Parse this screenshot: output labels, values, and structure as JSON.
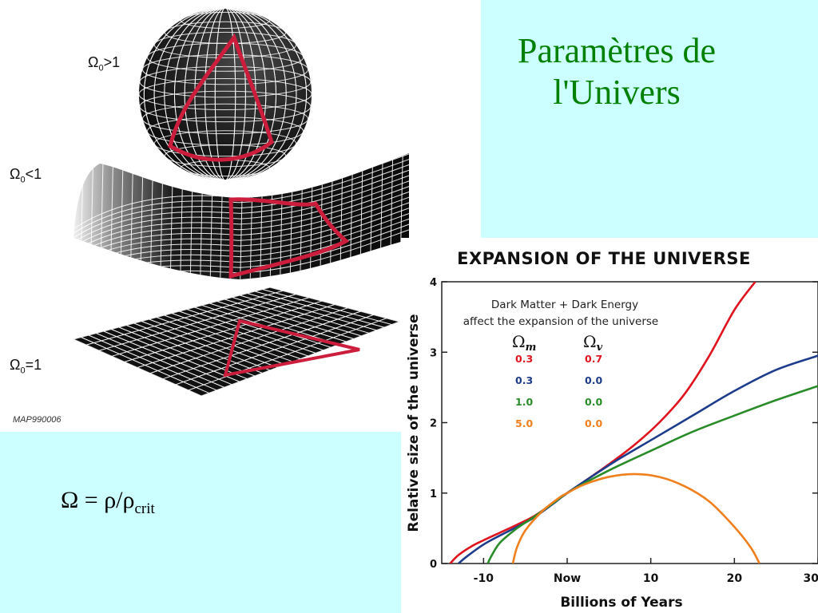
{
  "slide": {
    "title_line1": "Paramètres de",
    "title_line2": "l'Univers",
    "formula_main": "Ω = ρ/ρ",
    "formula_sub": "crit"
  },
  "geometry": {
    "closed_label": "Ω",
    "closed_sub": "0",
    "closed_rel": ">1",
    "open_label": "Ω",
    "open_sub": "0",
    "open_rel": "<1",
    "flat_label": "Ω",
    "flat_sub": "0",
    "flat_rel": "=1",
    "credit": "MAP990006",
    "grid_color": "#ffffff",
    "surface_color": "#111111",
    "triangle_color": "#cc1e3c"
  },
  "chart_data": {
    "type": "line",
    "title": "EXPANSION OF THE UNIVERSE",
    "xlabel": "Billions of Years",
    "ylabel": "Relative size of the universe",
    "xlim": [
      -15,
      30
    ],
    "ylim": [
      0,
      4
    ],
    "x_ticks": [
      {
        "value": -10,
        "label": "-10"
      },
      {
        "value": 0,
        "label": "Now"
      },
      {
        "value": 10,
        "label": "10"
      },
      {
        "value": 20,
        "label": "20"
      },
      {
        "value": 30,
        "label": "30"
      }
    ],
    "y_ticks": [
      {
        "value": 0,
        "label": "0"
      },
      {
        "value": 1,
        "label": "1"
      },
      {
        "value": 2,
        "label": "2"
      },
      {
        "value": 3,
        "label": "3"
      },
      {
        "value": 4,
        "label": "4"
      }
    ],
    "legend": {
      "note_line1": "Dark Matter + Dark Energy",
      "note_line2": "affect the expansion of the universe",
      "col1_symbol": "Ω",
      "col1_sub": "m",
      "col2_symbol": "Ω",
      "col2_sub": "v"
    },
    "series": [
      {
        "omega_m": "0.3",
        "omega_v": "0.7",
        "color": "#e0141e",
        "x": [
          -14.0,
          -13.0,
          -11.5,
          -10,
          -8,
          -6,
          -4,
          -2,
          0,
          2,
          5,
          8,
          11,
          14,
          17,
          20,
          22.5
        ],
        "y": [
          0.0,
          0.12,
          0.24,
          0.33,
          0.44,
          0.55,
          0.67,
          0.83,
          1.0,
          1.16,
          1.41,
          1.68,
          2.0,
          2.4,
          2.95,
          3.6,
          4.0
        ]
      },
      {
        "omega_m": "0.3",
        "omega_v": "0.0",
        "color": "#1e3c8c",
        "x": [
          -13.0,
          -12.0,
          -10,
          -8,
          -6,
          -4,
          -2,
          0,
          3,
          6,
          10,
          15,
          20,
          25,
          30
        ],
        "y": [
          0.0,
          0.1,
          0.27,
          0.4,
          0.52,
          0.65,
          0.82,
          1.0,
          1.24,
          1.47,
          1.75,
          2.1,
          2.45,
          2.75,
          2.95
        ]
      },
      {
        "omega_m": "1.0",
        "omega_v": "0.0",
        "color": "#2a8c28",
        "x": [
          -9.5,
          -9.0,
          -8,
          -6,
          -4,
          -2,
          0,
          3,
          6,
          10,
          15,
          20,
          25,
          30
        ],
        "y": [
          0.0,
          0.12,
          0.3,
          0.5,
          0.66,
          0.83,
          1.0,
          1.2,
          1.38,
          1.6,
          1.87,
          2.1,
          2.32,
          2.52
        ]
      },
      {
        "omega_m": "5.0",
        "omega_v": "0.0",
        "color": "#f07f1e",
        "x": [
          -6.5,
          -6.0,
          -5,
          -3,
          -1,
          0,
          2,
          5,
          8,
          11,
          14,
          17,
          20,
          22,
          23
        ],
        "y": [
          0.0,
          0.23,
          0.47,
          0.74,
          0.93,
          1.0,
          1.12,
          1.23,
          1.27,
          1.23,
          1.1,
          0.88,
          0.52,
          0.22,
          0.0
        ]
      }
    ]
  }
}
